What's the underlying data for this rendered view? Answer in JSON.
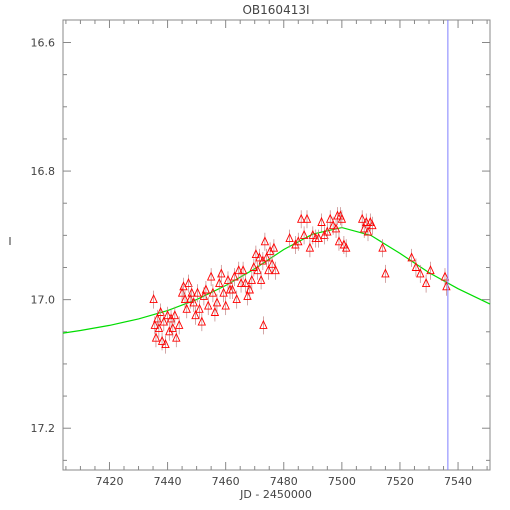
{
  "chart_data": {
    "type": "scatter",
    "title": "OB160413I",
    "xlabel": "JD - 2450000",
    "ylabel": "I",
    "xlim": [
      7404,
      7551
    ],
    "ylim": [
      17.265,
      16.565
    ],
    "y_inverted": true,
    "x_ticks": [
      7420,
      7440,
      7460,
      7480,
      7500,
      7520,
      7540
    ],
    "y_ticks": [
      16.6,
      16.8,
      17.0,
      17.2
    ],
    "y_tick_labels": [
      "16.6",
      "16.8",
      "17.0",
      "17.2"
    ],
    "grid": false,
    "legend": "none",
    "colors": {
      "points": "#ff0000",
      "model": "#00dd00",
      "marker_line": "#8080ff",
      "axes": "#888888"
    },
    "vertical_marker": {
      "x": 7536.5
    },
    "model_curve": {
      "name": "",
      "x": [
        7404,
        7410,
        7420,
        7430,
        7440,
        7450,
        7460,
        7470,
        7480,
        7490,
        7500,
        7510,
        7520,
        7530,
        7540,
        7551
      ],
      "y": [
        17.052,
        17.048,
        17.04,
        17.03,
        17.017,
        17.0,
        16.978,
        16.952,
        16.922,
        16.898,
        16.888,
        16.9,
        16.928,
        16.958,
        16.983,
        17.007
      ]
    },
    "series": [
      {
        "name": "",
        "points": [
          [
            7435.2,
            17.0
          ],
          [
            7435.6,
            17.04
          ],
          [
            7436.0,
            17.06
          ],
          [
            7436.5,
            17.03
          ],
          [
            7437.0,
            17.045
          ],
          [
            7437.6,
            17.02
          ],
          [
            7438.1,
            17.065
          ],
          [
            7438.7,
            17.035
          ],
          [
            7439.3,
            17.07
          ],
          [
            7440.0,
            17.025
          ],
          [
            7440.6,
            17.05
          ],
          [
            7441.2,
            17.03
          ],
          [
            7441.8,
            17.045
          ],
          [
            7442.5,
            17.025
          ],
          [
            7443.0,
            17.06
          ],
          [
            7444.0,
            17.04
          ],
          [
            7445.0,
            16.99
          ],
          [
            7445.5,
            16.98
          ],
          [
            7446.0,
            17.0
          ],
          [
            7446.6,
            17.015
          ],
          [
            7447.2,
            16.975
          ],
          [
            7447.8,
            17.0
          ],
          [
            7448.3,
            16.99
          ],
          [
            7449.0,
            17.005
          ],
          [
            7449.6,
            17.025
          ],
          [
            7450.3,
            16.99
          ],
          [
            7451.0,
            17.015
          ],
          [
            7451.8,
            17.035
          ],
          [
            7452.5,
            16.995
          ],
          [
            7453.2,
            16.985
          ],
          [
            7454.0,
            17.01
          ],
          [
            7455.0,
            16.965
          ],
          [
            7455.6,
            16.99
          ],
          [
            7456.3,
            17.02
          ],
          [
            7457.0,
            17.005
          ],
          [
            7457.8,
            16.975
          ],
          [
            7458.5,
            16.96
          ],
          [
            7459.3,
            16.99
          ],
          [
            7460.0,
            17.01
          ],
          [
            7460.8,
            16.97
          ],
          [
            7461.5,
            16.985
          ],
          [
            7462.3,
            16.985
          ],
          [
            7463.0,
            16.965
          ],
          [
            7463.8,
            17.0
          ],
          [
            7464.5,
            16.955
          ],
          [
            7465.3,
            16.975
          ],
          [
            7466.0,
            16.955
          ],
          [
            7466.8,
            16.975
          ],
          [
            7467.5,
            16.995
          ],
          [
            7468.3,
            16.985
          ],
          [
            7469.0,
            16.97
          ],
          [
            7469.7,
            16.95
          ],
          [
            7470.4,
            16.93
          ],
          [
            7471.0,
            16.955
          ],
          [
            7471.6,
            16.935
          ],
          [
            7472.2,
            16.97
          ],
          [
            7472.8,
            16.94
          ],
          [
            7473.0,
            17.04
          ],
          [
            7473.5,
            16.91
          ],
          [
            7474.1,
            16.935
          ],
          [
            7474.7,
            16.955
          ],
          [
            7475.3,
            16.925
          ],
          [
            7476.0,
            16.945
          ],
          [
            7476.6,
            16.92
          ],
          [
            7477.2,
            16.955
          ],
          [
            7482.0,
            16.905
          ],
          [
            7484.0,
            16.915
          ],
          [
            7485.0,
            16.91
          ],
          [
            7486.0,
            16.875
          ],
          [
            7487.0,
            16.9
          ],
          [
            7488.0,
            16.875
          ],
          [
            7489.0,
            16.92
          ],
          [
            7490.0,
            16.9
          ],
          [
            7491.0,
            16.905
          ],
          [
            7492.0,
            16.905
          ],
          [
            7493.0,
            16.88
          ],
          [
            7494.0,
            16.9
          ],
          [
            7495.0,
            16.895
          ],
          [
            7496.0,
            16.875
          ],
          [
            7497.0,
            16.885
          ],
          [
            7498.0,
            16.89
          ],
          [
            7498.5,
            16.87
          ],
          [
            7499.0,
            16.91
          ],
          [
            7499.5,
            16.87
          ],
          [
            7500.0,
            16.875
          ],
          [
            7500.7,
            16.915
          ],
          [
            7501.5,
            16.92
          ],
          [
            7507.0,
            16.875
          ],
          [
            7507.7,
            16.89
          ],
          [
            7508.4,
            16.88
          ],
          [
            7509.0,
            16.895
          ],
          [
            7509.8,
            16.88
          ],
          [
            7510.5,
            16.885
          ],
          [
            7514.0,
            16.92
          ],
          [
            7515.0,
            16.96
          ],
          [
            7524.0,
            16.935
          ],
          [
            7525.5,
            16.95
          ],
          [
            7527.0,
            16.96
          ],
          [
            7529.0,
            16.975
          ],
          [
            7530.5,
            16.955
          ],
          [
            7535.5,
            16.965
          ],
          [
            7536.0,
            16.98
          ]
        ]
      }
    ]
  }
}
